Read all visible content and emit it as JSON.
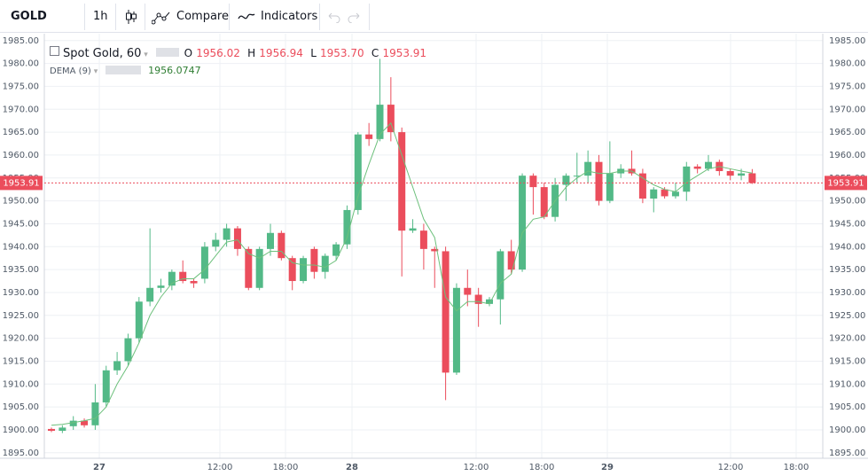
{
  "toolbar": {
    "symbol": "GOLD",
    "interval": "1h",
    "compare": "Compare",
    "indicators": "Indicators"
  },
  "chart_data": {
    "type": "candlestick",
    "title": "Spot Gold, 60",
    "ohlc_labels": [
      "O",
      "H",
      "L",
      "C"
    ],
    "ohlc_value_labels": [
      "1956.02",
      "1956.94",
      "1953.70",
      "1953.91"
    ],
    "up_color": "#53b987",
    "down_color": "#eb4d5c",
    "open": [
      1900.2,
      1899.8,
      1900.8,
      1902,
      1901,
      1906,
      1913,
      1915,
      1920,
      1928,
      1931,
      1931.5,
      1934.5,
      1932.5,
      1933,
      1940,
      1941.5,
      1944,
      1939.5,
      1931,
      1939.5,
      1943,
      1937.5,
      1932.5,
      1939.5,
      1934.5,
      1938,
      1940.5,
      1948,
      1964.5,
      1963.5,
      1971,
      1965,
      1943.5,
      1943.5,
      1939.5,
      1939,
      1912.5,
      1931,
      1929.5,
      1927.5,
      1928.5,
      1939,
      1935,
      1955.5,
      1953,
      1946.5,
      1953.5,
      1955.5,
      1955.5,
      1958.5,
      1950,
      1956,
      1957,
      1956,
      1950.5,
      1952.5,
      1951,
      1952,
      1957.5,
      1957,
      1958.5,
      1956.5,
      1955.5,
      1956.02
    ],
    "high": [
      1900.5,
      1901,
      1903,
      1902.5,
      1910,
      1914,
      1917,
      1921,
      1929,
      1944,
      1933,
      1935,
      1937,
      1933,
      1941,
      1943,
      1945,
      1944.5,
      1940,
      1940,
      1945,
      1943.5,
      1938,
      1938,
      1940,
      1938.5,
      1941,
      1949,
      1965,
      1967,
      1981,
      1977,
      1966,
      1946,
      1945,
      1940,
      1940,
      1932,
      1935,
      1931,
      1929,
      1939.5,
      1941.5,
      1956,
      1956,
      1954,
      1955,
      1956,
      1960.5,
      1961,
      1960,
      1963,
      1958,
      1961,
      1957,
      1953,
      1953,
      1954,
      1958.5,
      1958,
      1960,
      1959,
      1957,
      1957,
      1956.94
    ],
    "low": [
      1899.5,
      1899.3,
      1900,
      1900.5,
      1900,
      1905,
      1912,
      1914,
      1919,
      1927,
      1930,
      1930.5,
      1932,
      1931,
      1932,
      1939,
      1940,
      1938,
      1930.5,
      1930.5,
      1938,
      1937,
      1930.5,
      1932,
      1933,
      1933,
      1937,
      1939.5,
      1947,
      1962,
      1963,
      1963,
      1933.5,
      1943,
      1935,
      1931,
      1906.5,
      1912,
      1927,
      1922.5,
      1927,
      1923,
      1934,
      1934.5,
      1947,
      1946,
      1945.5,
      1950,
      1954,
      1954,
      1949,
      1949.5,
      1955,
      1955.5,
      1949.5,
      1947.5,
      1950.5,
      1950.5,
      1950,
      1956,
      1956.5,
      1955.5,
      1954.5,
      1954.5,
      1953.7
    ],
    "close": [
      1899.8,
      1900.5,
      1902,
      1901,
      1906,
      1913,
      1915,
      1920,
      1928,
      1931,
      1931.5,
      1934.5,
      1932.5,
      1932,
      1940,
      1941.5,
      1944,
      1939.5,
      1931,
      1939.5,
      1943,
      1937.5,
      1932.5,
      1937.5,
      1934.5,
      1938,
      1940.5,
      1948,
      1964.5,
      1963.5,
      1971,
      1965,
      1943.5,
      1944,
      1939.5,
      1939,
      1912.5,
      1931,
      1929.5,
      1927.5,
      1928.5,
      1939,
      1935,
      1955.5,
      1953,
      1946.5,
      1953.5,
      1955.5,
      1955.5,
      1958.5,
      1950,
      1956,
      1957,
      1956,
      1950.5,
      1952.5,
      1951,
      1952,
      1957.5,
      1957,
      1958.5,
      1956.5,
      1955.5,
      1956,
      1953.91
    ],
    "indicator": {
      "name": "DEMA (9)",
      "color": "#6dc07c",
      "values": [
        1901,
        1901.2,
        1901.6,
        1902,
        1902.5,
        1905,
        1910,
        1914,
        1919,
        1925,
        1929,
        1932,
        1933,
        1933,
        1935,
        1938,
        1941,
        1941.5,
        1938.5,
        1937.5,
        1939,
        1939,
        1936.5,
        1936,
        1936,
        1935.5,
        1937,
        1942,
        1951,
        1958,
        1964.5,
        1967,
        1960,
        1953,
        1946,
        1942,
        1929,
        1926,
        1928,
        1928,
        1927.5,
        1932,
        1934,
        1943,
        1946,
        1946.5,
        1950,
        1953,
        1955,
        1956.5,
        1956,
        1956,
        1956.5,
        1956.5,
        1955,
        1953.5,
        1952.5,
        1952,
        1954,
        1955.5,
        1957,
        1957.5,
        1957,
        1956.5,
        1956.0747
      ]
    },
    "x_labels": [
      "27",
      "12:00",
      "18:00",
      "28",
      "12:00",
      "18:00",
      "29",
      "12:00",
      "18:00"
    ],
    "ylim": [
      1893.8,
      1986.5
    ],
    "yticks": [
      {
        "value": 1895,
        "label": "1895.00"
      },
      {
        "value": 1900,
        "label": "1900.00"
      },
      {
        "value": 1905,
        "label": "1905.00"
      },
      {
        "value": 1910,
        "label": "1910.00"
      },
      {
        "value": 1915,
        "label": "1915.00"
      },
      {
        "value": 1920,
        "label": "1920.00"
      },
      {
        "value": 1925,
        "label": "1925.00"
      },
      {
        "value": 1930,
        "label": "1930.00"
      },
      {
        "value": 1935,
        "label": "1935.00"
      },
      {
        "value": 1940,
        "label": "1940.00"
      },
      {
        "value": 1945,
        "label": "1945.00"
      },
      {
        "value": 1950,
        "label": "1950.00"
      },
      {
        "value": 1955,
        "label": "1955.00"
      },
      {
        "value": 1960,
        "label": "1960.00"
      },
      {
        "value": 1965,
        "label": "1965.00"
      },
      {
        "value": 1970,
        "label": "1970.00"
      },
      {
        "value": 1975,
        "label": "1975.00"
      },
      {
        "value": 1980,
        "label": "1980.00"
      },
      {
        "value": 1985,
        "label": "1985.00"
      }
    ],
    "grid": true
  }
}
